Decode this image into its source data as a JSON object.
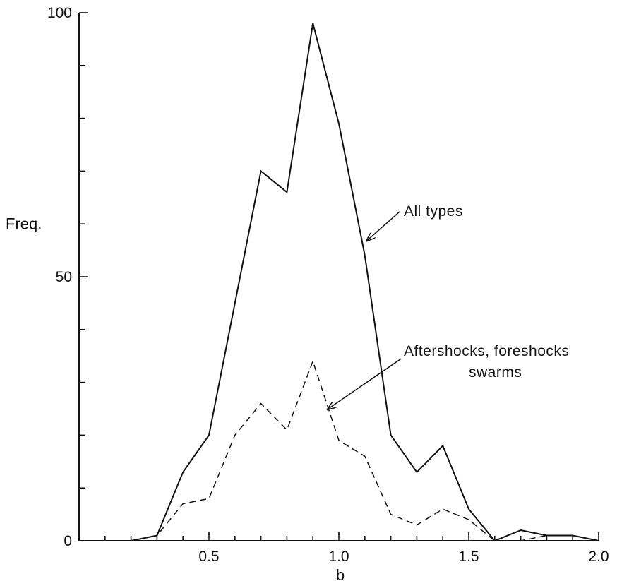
{
  "chart_data": {
    "type": "line",
    "xlabel": "b",
    "ylabel": "Freq.",
    "xlim": [
      0,
      2.0
    ],
    "ylim": [
      0,
      100
    ],
    "x_ticks": [
      "0.5",
      "1.0",
      "1.5",
      "2.0"
    ],
    "y_ticks": [
      "0",
      "50",
      "100"
    ],
    "grid": false,
    "legend": "none",
    "series": [
      {
        "style": "solid",
        "color": "#111111",
        "x": [
          0.2,
          0.3,
          0.4,
          0.5,
          0.6,
          0.7,
          0.8,
          0.9,
          1.0,
          1.1,
          1.2,
          1.3,
          1.4,
          1.5,
          1.6,
          1.7,
          1.8,
          1.9,
          2.0
        ],
        "values": [
          0,
          1,
          13,
          20,
          45,
          70,
          66,
          98,
          79,
          54,
          20,
          13,
          18,
          6,
          0,
          2,
          1,
          1,
          0
        ]
      },
      {
        "style": "dashed",
        "color": "#111111",
        "x": [
          0.2,
          0.3,
          0.4,
          0.5,
          0.6,
          0.7,
          0.8,
          0.9,
          1.0,
          1.1,
          1.2,
          1.3,
          1.4,
          1.5,
          1.6,
          1.7,
          1.8,
          1.9,
          2.0
        ],
        "values": [
          0,
          1,
          7,
          8,
          20,
          26,
          21,
          34,
          19,
          16,
          5,
          3,
          6,
          4,
          0,
          0,
          1,
          1,
          0
        ]
      }
    ],
    "annotations": [
      {
        "text": "All types",
        "target_series": 0,
        "target_x": 1.1,
        "target_y": 57,
        "text_x": 1.25,
        "text_y": 61.5
      },
      {
        "text": "Aftershocks, foreshocks",
        "target_series": 1,
        "target_x": 0.95,
        "target_y": 25,
        "text_x": 1.25,
        "text_y": 35
      },
      {
        "text": "swarms",
        "target_series": 1,
        "target_x": 0.95,
        "target_y": 25,
        "text_x": 1.5,
        "text_y": 31
      }
    ]
  }
}
